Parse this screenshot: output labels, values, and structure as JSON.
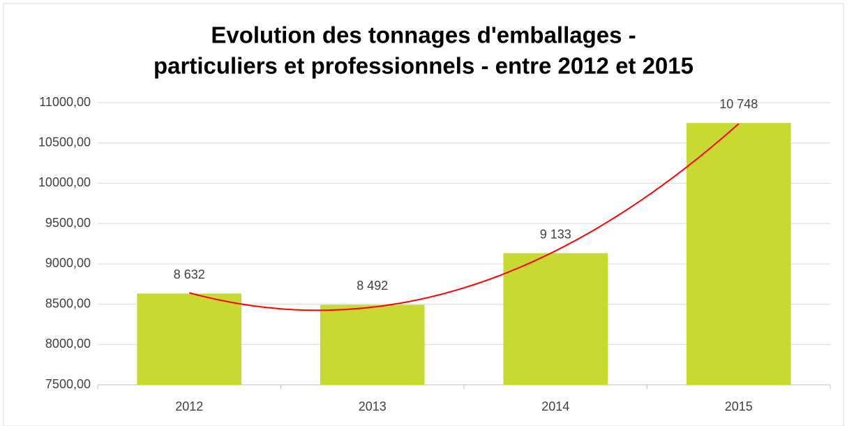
{
  "chart_data": {
    "type": "bar",
    "title": [
      "Evolution des tonnages d'emballages -",
      "particuliers et professionnels - entre 2012 et 2015"
    ],
    "categories": [
      "2012",
      "2013",
      "2014",
      "2015"
    ],
    "values": [
      8632,
      8492,
      9133,
      10748
    ],
    "value_labels": [
      "8 632",
      "8 492",
      "9 133",
      "10 748"
    ],
    "color": "#c8d932",
    "ylim": [
      7500,
      11000
    ],
    "yticks": [
      {
        "value": 7500,
        "label": "7500,00"
      },
      {
        "value": 8000,
        "label": "8000,00"
      },
      {
        "value": 8500,
        "label": "8500,00"
      },
      {
        "value": 9000,
        "label": "9000,00"
      },
      {
        "value": 9500,
        "label": "9500,00"
      },
      {
        "value": 10000,
        "label": "10000,00"
      },
      {
        "value": 10500,
        "label": "10500,00"
      },
      {
        "value": 11000,
        "label": "11000,00"
      }
    ],
    "grid": true,
    "trendline": {
      "type": "polynomial",
      "order": 2,
      "color": "#ff0000"
    }
  }
}
